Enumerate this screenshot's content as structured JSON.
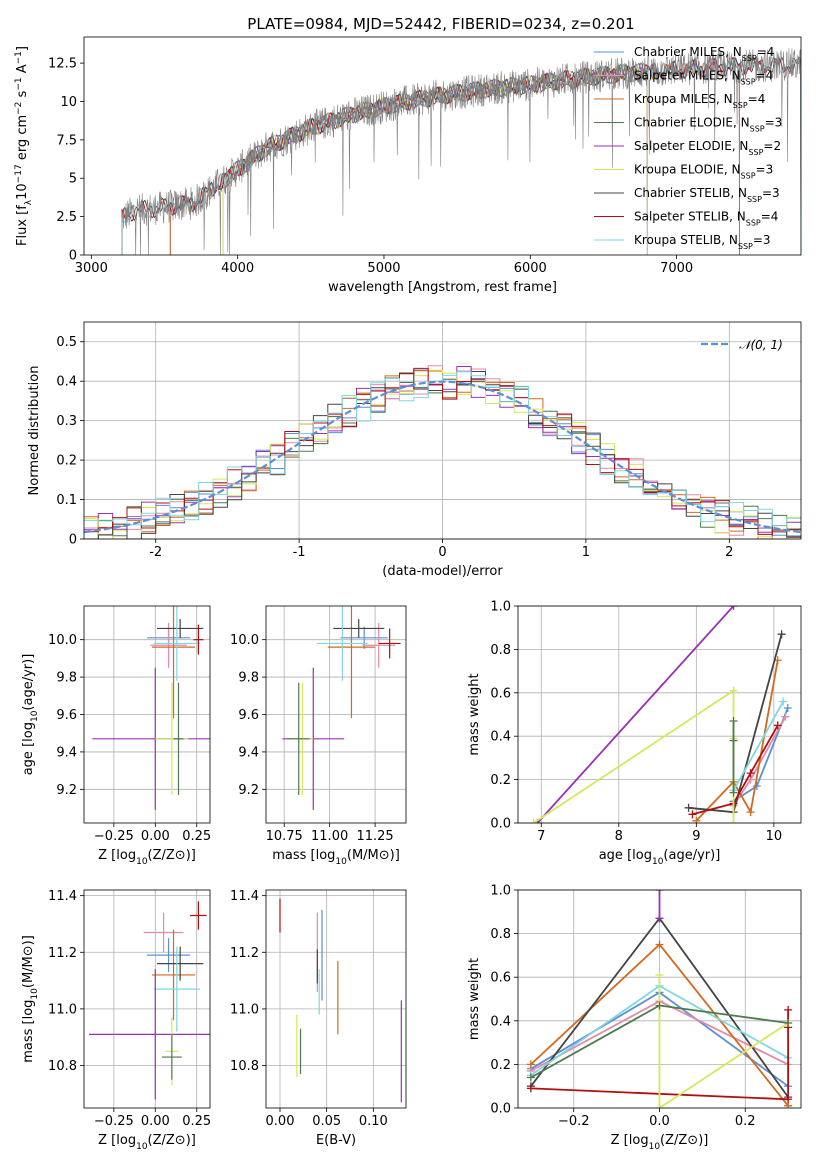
{
  "figure_title": "PLATE=0984, MJD=52442, FIBERID=0234, z=0.201",
  "chart_data": [
    {
      "id": "spectrum",
      "type": "line",
      "title": "PLATE=0984, MJD=52442, FIBERID=0234, z=0.201",
      "xlabel": "wavelength [Angstrom, rest frame]",
      "ylabel": "Flux [f_λ 10^-17 erg cm^-2 s^-1 A^-1]",
      "xlim": [
        2950,
        7850
      ],
      "ylim": [
        0,
        14.2
      ],
      "xticks": [
        3000,
        4000,
        5000,
        6000,
        7000
      ],
      "yticks": [
        0.0,
        2.5,
        5.0,
        7.5,
        10.0,
        12.5
      ],
      "grid": false,
      "legend_position": "top-right",
      "continuum": {
        "x": [
          3210,
          3300,
          3500,
          3700,
          3950,
          4200,
          4500,
          4800,
          5100,
          5400,
          5700,
          6000,
          6300,
          6600,
          6900,
          7200,
          7500,
          7850
        ],
        "y": [
          2.4,
          2.9,
          3.1,
          3.4,
          5.2,
          7.0,
          8.3,
          9.2,
          9.9,
          10.4,
          10.8,
          11.1,
          11.5,
          11.8,
          12.0,
          12.2,
          12.3,
          12.4
        ]
      },
      "series": [
        {
          "name": "Chabrier MILES, N_SSP=4",
          "color": "#5b8fd8",
          "xmin": 3540,
          "xmax": 7430
        },
        {
          "name": "Salpeter MILES, N_SSP=4",
          "color": "#e58aa8",
          "xmin": 3540,
          "xmax": 7430
        },
        {
          "name": "Kroupa MILES, N_SSP=4",
          "color": "#d2691e",
          "xmin": 3540,
          "xmax": 7430
        },
        {
          "name": "Chabrier ELODIE, N_SSP=3",
          "color": "#4e7a4e",
          "xmin": 3900,
          "xmax": 6800
        },
        {
          "name": "Salpeter ELODIE, N_SSP=2",
          "color": "#9b30b5",
          "xmin": 3900,
          "xmax": 6800
        },
        {
          "name": "Kroupa ELODIE, N_SSP=3",
          "color": "#d6e85a",
          "xmin": 3900,
          "xmax": 6800
        },
        {
          "name": "Chabrier STELIB, N_SSP=3",
          "color": "#444444",
          "xmin": 3210,
          "xmax": 7850
        },
        {
          "name": "Salpeter STELIB, N_SSP=4",
          "color": "#b01010",
          "xmin": 3210,
          "xmax": 7850
        },
        {
          "name": "Kroupa STELIB, N_SSP=3",
          "color": "#7fd6e0",
          "xmin": 3210,
          "xmax": 7850
        }
      ],
      "data_color": "#808080"
    },
    {
      "id": "residuals",
      "type": "line",
      "xlabel": "(data-model)/error",
      "ylabel": "Normed distribution",
      "xlim": [
        -2.5,
        2.5
      ],
      "ylim": [
        0,
        0.55
      ],
      "xticks": [
        -2,
        -1,
        0,
        1,
        2
      ],
      "yticks": [
        0.0,
        0.1,
        0.2,
        0.3,
        0.4,
        0.5
      ],
      "grid": true,
      "legend_position": "top-right",
      "reference": {
        "name": "𝒩(0, 1)",
        "mean": 0,
        "sigma": 1,
        "color": "#5b8fd8"
      },
      "bin_width": 0.1
    },
    {
      "id": "age-vs-Z",
      "type": "scatter",
      "xlabel": "Z [log10(Z/Z⊙)]",
      "ylabel": "age [log10(age/yr)]",
      "xlim": [
        -0.43,
        0.33
      ],
      "ylim": [
        9.02,
        10.18
      ],
      "xticks": [
        -0.25,
        0.0,
        0.25
      ],
      "xticklabels": [
        "−0.25",
        "0.00",
        "0.25"
      ],
      "yticks": [
        9.2,
        9.4,
        9.6,
        9.8,
        10.0
      ],
      "yticklabels": [
        "9.2",
        "9.4",
        "9.6",
        "9.8",
        "10.0"
      ],
      "grid": true,
      "points": [
        {
          "color": "#5b8fd8",
          "x": 0.08,
          "xerr": 0.13,
          "y": 10.01,
          "yerr": 0.06
        },
        {
          "color": "#e58aa8",
          "x": 0.08,
          "xerr": 0.11,
          "y": 9.97,
          "yerr": 0.12
        },
        {
          "color": "#d2691e",
          "x": 0.11,
          "xerr": 0.13,
          "y": 9.96,
          "yerr": 0.38
        },
        {
          "color": "#444444",
          "x": 0.15,
          "xerr": 0.14,
          "y": 10.06,
          "yerr": 0.05
        },
        {
          "color": "#7fd6e0",
          "x": 0.13,
          "xerr": 0.14,
          "y": 9.98,
          "yerr": 0.2
        },
        {
          "color": "#b01010",
          "x": 0.26,
          "xerr": 0.03,
          "y": 10.0,
          "yerr": 0.08
        },
        {
          "color": "#9b30b5",
          "x": 0.0,
          "xerr": 0.38,
          "y": 9.47,
          "yerr": 0.38
        },
        {
          "color": "#d6e85a",
          "x": 0.1,
          "xerr": 0.1,
          "y": 9.47,
          "yerr": 0.3
        },
        {
          "color": "#4e7a4e",
          "x": 0.14,
          "xerr": 0.03,
          "y": 9.47,
          "yerr": 0.3
        }
      ]
    },
    {
      "id": "age-vs-mass",
      "type": "scatter",
      "xlabel": "mass [log10(M/M⊙)]",
      "ylabel": "",
      "xlim": [
        10.65,
        11.42
      ],
      "ylim": [
        9.02,
        10.18
      ],
      "xticks": [
        10.75,
        11.0,
        11.25
      ],
      "xticklabels": [
        "10.75",
        "11.00",
        "11.25"
      ],
      "yticks": [
        9.2,
        9.4,
        9.6,
        9.8,
        10.0
      ],
      "yticklabels": [
        "9.2",
        "9.4",
        "9.6",
        "9.8",
        "10.0"
      ],
      "grid": true,
      "points": [
        {
          "color": "#5b8fd8",
          "x": 11.19,
          "xerr": 0.13,
          "y": 10.01,
          "yerr": 0.06
        },
        {
          "color": "#e58aa8",
          "x": 11.27,
          "xerr": 0.09,
          "y": 9.97,
          "yerr": 0.12
        },
        {
          "color": "#d2691e",
          "x": 11.12,
          "xerr": 0.13,
          "y": 9.96,
          "yerr": 0.38
        },
        {
          "color": "#444444",
          "x": 11.16,
          "xerr": 0.14,
          "y": 10.06,
          "yerr": 0.05
        },
        {
          "color": "#7fd6e0",
          "x": 11.07,
          "xerr": 0.14,
          "y": 9.98,
          "yerr": 0.2
        },
        {
          "color": "#b01010",
          "x": 11.33,
          "xerr": 0.06,
          "y": 9.98,
          "yerr": 0.08
        },
        {
          "color": "#9b30b5",
          "x": 10.91,
          "xerr": 0.17,
          "y": 9.47,
          "yerr": 0.38
        },
        {
          "color": "#d6e85a",
          "x": 10.85,
          "xerr": 0.06,
          "y": 9.47,
          "yerr": 0.3
        },
        {
          "color": "#4e7a4e",
          "x": 10.83,
          "xerr": 0.06,
          "y": 9.47,
          "yerr": 0.3
        }
      ]
    },
    {
      "id": "weight-vs-age",
      "type": "line",
      "xlabel": "age [log10(age/yr)]",
      "ylabel": "mass weight",
      "xlim": [
        6.7,
        10.35
      ],
      "ylim": [
        0,
        1.0
      ],
      "xticks": [
        7,
        8,
        9,
        10
      ],
      "xticklabels": [
        "7",
        "8",
        "9",
        "10"
      ],
      "yticks": [
        0.0,
        0.2,
        0.4,
        0.6,
        0.8,
        1.0
      ],
      "yticklabels": [
        "0.0",
        "0.2",
        "0.4",
        "0.6",
        "0.8",
        "1.0"
      ],
      "grid": true,
      "series": [
        {
          "color": "#5b8fd8",
          "x": [
            9.48,
            9.78,
            10.18
          ],
          "y": [
            0.1,
            0.17,
            0.53
          ]
        },
        {
          "color": "#e58aa8",
          "x": [
            9.48,
            9.7,
            10.15
          ],
          "y": [
            0.08,
            0.2,
            0.49
          ]
        },
        {
          "color": "#d2691e",
          "x": [
            9.0,
            9.48,
            9.7,
            10.05
          ],
          "y": [
            0.01,
            0.19,
            0.05,
            0.75
          ]
        },
        {
          "color": "#444444",
          "x": [
            8.9,
            9.48,
            10.1
          ],
          "y": [
            0.07,
            0.05,
            0.87
          ]
        },
        {
          "color": "#7fd6e0",
          "x": [
            9.48,
            10.12
          ],
          "y": [
            0.15,
            0.56
          ]
        },
        {
          "color": "#b01010",
          "x": [
            8.95,
            9.48,
            9.7,
            10.05
          ],
          "y": [
            0.04,
            0.09,
            0.23,
            0.45
          ]
        },
        {
          "color": "#9b30b5",
          "x": [
            6.95,
            9.48
          ],
          "y": [
            0.0,
            1.0
          ]
        },
        {
          "color": "#d6e85a",
          "x": [
            6.9,
            9.48,
            9.48,
            9.48
          ],
          "y": [
            0.0,
            0.61,
            0.39,
            0.0
          ]
        },
        {
          "color": "#4e7a4e",
          "x": [
            9.48,
            9.48,
            9.48
          ],
          "y": [
            0.47,
            0.38,
            0.14
          ]
        }
      ]
    },
    {
      "id": "mass-vs-Z",
      "type": "scatter",
      "xlabel": "Z [log10(Z/Z⊙)]",
      "ylabel": "mass [log10(M/M⊙)]",
      "xlim": [
        -0.43,
        0.33
      ],
      "ylim": [
        10.65,
        11.42
      ],
      "xticks": [
        -0.25,
        0.0,
        0.25
      ],
      "xticklabels": [
        "−0.25",
        "0.00",
        "0.25"
      ],
      "yticks": [
        10.8,
        11.0,
        11.2,
        11.4
      ],
      "yticklabels": [
        "10.8",
        "11.0",
        "11.2",
        "11.4"
      ],
      "grid": true,
      "points": [
        {
          "color": "#5b8fd8",
          "x": 0.08,
          "xerr": 0.13,
          "y": 11.19,
          "yerr": 0.06
        },
        {
          "color": "#e58aa8",
          "x": 0.05,
          "xerr": 0.12,
          "y": 11.27,
          "yerr": 0.07
        },
        {
          "color": "#d2691e",
          "x": 0.11,
          "xerr": 0.13,
          "y": 11.12,
          "yerr": 0.16
        },
        {
          "color": "#444444",
          "x": 0.15,
          "xerr": 0.14,
          "y": 11.16,
          "yerr": 0.06
        },
        {
          "color": "#7fd6e0",
          "x": 0.13,
          "xerr": 0.14,
          "y": 11.07,
          "yerr": 0.15
        },
        {
          "color": "#b01010",
          "x": 0.26,
          "xerr": 0.05,
          "y": 11.33,
          "yerr": 0.05
        },
        {
          "color": "#9b30b5",
          "x": 0.0,
          "xerr": 0.4,
          "y": 10.91,
          "yerr": 0.23
        },
        {
          "color": "#d6e85a",
          "x": 0.1,
          "xerr": 0.04,
          "y": 10.85,
          "yerr": 0.12
        },
        {
          "color": "#4e7a4e",
          "x": 0.1,
          "xerr": 0.06,
          "y": 10.83,
          "yerr": 0.08
        }
      ]
    },
    {
      "id": "mass-vs-EBV",
      "type": "scatter",
      "xlabel": "E(B-V)",
      "ylabel": "",
      "xlim": [
        -0.015,
        0.135
      ],
      "ylim": [
        10.65,
        11.42
      ],
      "xticks": [
        0.0,
        0.05,
        0.1
      ],
      "xticklabels": [
        "0.00",
        "0.05",
        "0.10"
      ],
      "yticks": [
        10.8,
        11.0,
        11.2,
        11.4
      ],
      "yticklabels": [
        "10.8",
        "11.0",
        "11.2",
        "11.4"
      ],
      "grid": true,
      "points": [
        {
          "color": "#5b8fd8",
          "x": 0.045,
          "xerr": 0.0,
          "y": 11.19,
          "yerr": 0.16
        },
        {
          "color": "#e58aa8",
          "x": 0.04,
          "xerr": 0.0,
          "y": 11.2,
          "yerr": 0.14
        },
        {
          "color": "#d2691e",
          "x": 0.062,
          "xerr": 0.0,
          "y": 11.04,
          "yerr": 0.13
        },
        {
          "color": "#444444",
          "x": 0.04,
          "xerr": 0.0,
          "y": 11.15,
          "yerr": 0.06
        },
        {
          "color": "#7fd6e0",
          "x": 0.042,
          "xerr": 0.0,
          "y": 11.06,
          "yerr": 0.08
        },
        {
          "color": "#b01010",
          "x": 0.0,
          "xerr": 0.0,
          "y": 11.33,
          "yerr": 0.06
        },
        {
          "color": "#9b30b5",
          "x": 0.13,
          "xerr": 0.0,
          "y": 10.85,
          "yerr": 0.18
        },
        {
          "color": "#d6e85a",
          "x": 0.018,
          "xerr": 0.0,
          "y": 10.87,
          "yerr": 0.11
        },
        {
          "color": "#4e7a4e",
          "x": 0.022,
          "xerr": 0.0,
          "y": 10.85,
          "yerr": 0.08
        }
      ]
    },
    {
      "id": "weight-vs-Z",
      "type": "line",
      "xlabel": "Z [log10(Z/Z⊙)]",
      "ylabel": "mass weight",
      "xlim": [
        -0.33,
        0.33
      ],
      "ylim": [
        0,
        1.0
      ],
      "xticks": [
        -0.2,
        0.0,
        0.2
      ],
      "xticklabels": [
        "−0.2",
        "0.0",
        "0.2"
      ],
      "yticks": [
        0.0,
        0.2,
        0.4,
        0.6,
        0.8,
        1.0
      ],
      "yticklabels": [
        "0.0",
        "0.2",
        "0.4",
        "0.6",
        "0.8",
        "1.0"
      ],
      "grid": true,
      "series": [
        {
          "color": "#5b8fd8",
          "x": [
            -0.3,
            0.0,
            0.3
          ],
          "y": [
            0.18,
            0.53,
            0.1
          ]
        },
        {
          "color": "#e58aa8",
          "x": [
            -0.3,
            0.0,
            0.3
          ],
          "y": [
            0.17,
            0.49,
            0.2
          ]
        },
        {
          "color": "#d2691e",
          "x": [
            -0.3,
            0.0,
            0.3
          ],
          "y": [
            0.2,
            0.75,
            0.01
          ]
        },
        {
          "color": "#444444",
          "x": [
            -0.3,
            0.0,
            0.3
          ],
          "y": [
            0.1,
            0.87,
            0.05
          ]
        },
        {
          "color": "#7fd6e0",
          "x": [
            -0.3,
            0.0,
            0.3
          ],
          "y": [
            0.15,
            0.56,
            0.23
          ]
        },
        {
          "color": "#b01010",
          "x": [
            -0.3,
            0.3,
            0.3,
            0.3
          ],
          "y": [
            0.09,
            0.04,
            0.45,
            0.37
          ]
        },
        {
          "color": "#9b30b5",
          "x": [
            0.0,
            0.0
          ],
          "y": [
            1.0,
            0.87
          ]
        },
        {
          "color": "#d6e85a",
          "x": [
            0.0,
            0.0,
            0.3
          ],
          "y": [
            0.61,
            0.0,
            0.39
          ]
        },
        {
          "color": "#4e7a4e",
          "x": [
            -0.3,
            0.0,
            0.3
          ],
          "y": [
            0.14,
            0.47,
            0.39
          ]
        }
      ]
    }
  ]
}
